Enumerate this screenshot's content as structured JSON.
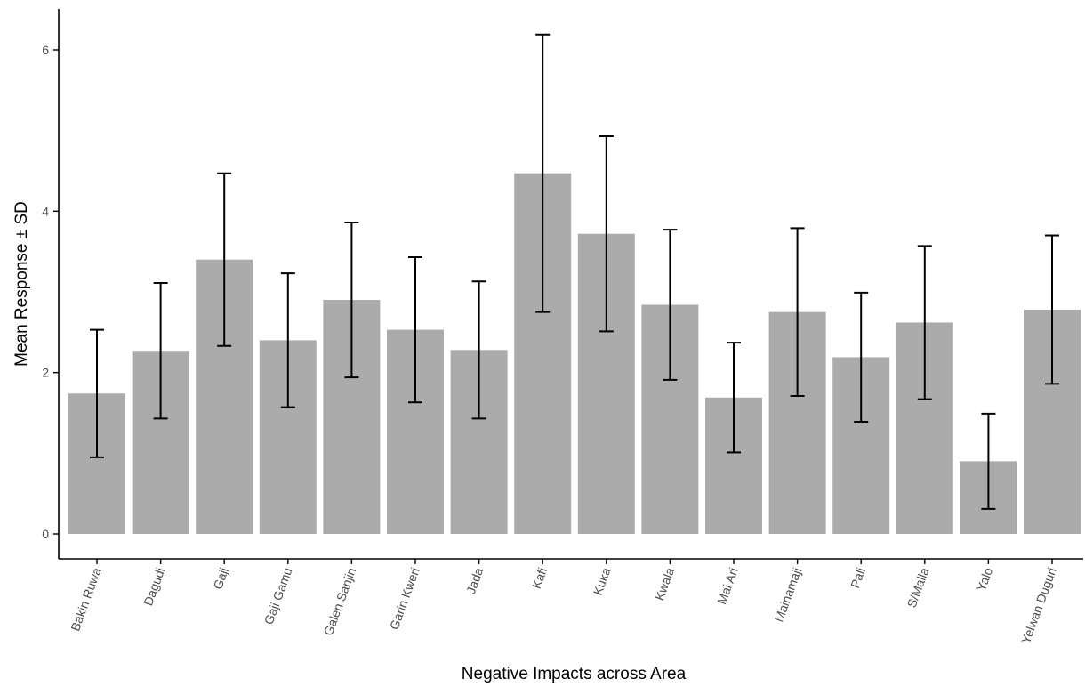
{
  "chart_data": {
    "type": "bar",
    "title": "",
    "xlabel": "Negative Impacts across Area",
    "ylabel": "Mean Response ± SD",
    "ylim": [
      -0.3,
      6.4
    ],
    "yticks": [
      "0",
      "2",
      "4",
      "6"
    ],
    "grid": false,
    "categories": [
      "Bakin Ruwa",
      "Dagudi",
      "Gaji",
      "Gaji Gamu",
      "Galen Sanjin",
      "Garin Kweri",
      "Jada",
      "Kafi",
      "Kuka",
      "Kwala",
      "Mai Ari",
      "Mainamaji",
      "Pali",
      "S/Malla",
      "Yalo",
      "Yelwan Duguri"
    ],
    "values": [
      1.74,
      2.27,
      3.4,
      2.4,
      2.9,
      2.53,
      2.28,
      4.47,
      3.72,
      2.84,
      1.69,
      2.75,
      2.19,
      2.62,
      0.9,
      2.78
    ],
    "sd": [
      0.79,
      0.84,
      1.07,
      0.83,
      0.96,
      0.9,
      0.85,
      1.72,
      1.21,
      0.93,
      0.68,
      1.04,
      0.8,
      0.95,
      0.59,
      0.92
    ],
    "colors": {
      "bar": "#ababab",
      "error_bar": "#000000"
    }
  }
}
